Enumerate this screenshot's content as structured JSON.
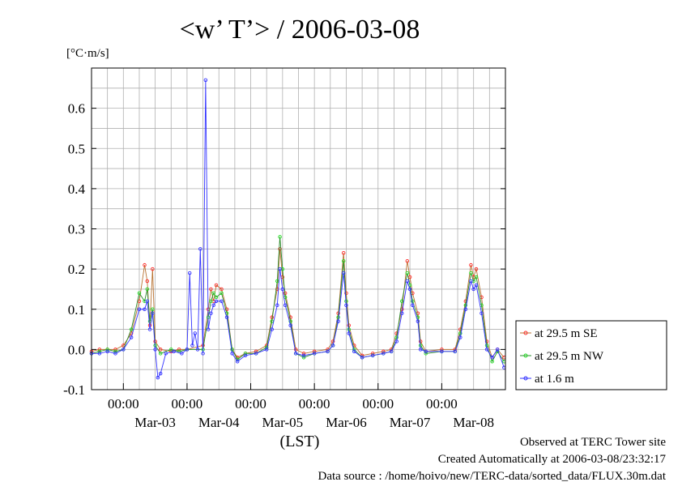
{
  "chart_data": {
    "type": "line",
    "title": "<w’ T’> / 2006-03-08",
    "ylabel": "[°C·m/s]",
    "xlabel": "(LST)",
    "x_start": "2006-03-02 12:00",
    "x_end": "2006-03-09 00:00",
    "ylim": [
      -0.1,
      0.7
    ],
    "yticks": [
      "-0.1",
      "0.0",
      "0.1",
      "0.2",
      "0.3",
      "0.4",
      "0.5",
      "0.6"
    ],
    "xticks_time": [
      {
        "label": "00:00",
        "date": "Mar-03"
      },
      {
        "label": "00:00",
        "date": "Mar-04"
      },
      {
        "label": "00:00",
        "date": "Mar-05"
      },
      {
        "label": "00:00",
        "date": "Mar-06"
      },
      {
        "label": "00:00",
        "date": "Mar-07"
      },
      {
        "label": "00:00",
        "date": "Mar-08"
      }
    ],
    "grid": true,
    "legend_position": "right",
    "series": [
      {
        "name": "at 29.5 m SE",
        "color": "#ff2a2a",
        "line_color": "#b87333",
        "points": [
          [
            "2006-03-02 12:00",
            -0.005
          ],
          [
            "2006-03-02 15:00",
            0.0
          ],
          [
            "2006-03-02 18:00",
            0.0
          ],
          [
            "2006-03-02 21:00",
            0.0
          ],
          [
            "2006-03-03 00:00",
            0.01
          ],
          [
            "2006-03-03 03:00",
            0.04
          ],
          [
            "2006-03-03 06:00",
            0.12
          ],
          [
            "2006-03-03 08:00",
            0.21
          ],
          [
            "2006-03-03 09:00",
            0.17
          ],
          [
            "2006-03-03 10:00",
            0.06
          ],
          [
            "2006-03-03 11:00",
            0.2
          ],
          [
            "2006-03-03 12:00",
            0.02
          ],
          [
            "2006-03-03 14:00",
            0.0
          ],
          [
            "2006-03-03 18:00",
            -0.005
          ],
          [
            "2006-03-03 21:00",
            0.0
          ],
          [
            "2006-03-04 00:00",
            0.0
          ],
          [
            "2006-03-04 06:00",
            0.01
          ],
          [
            "2006-03-04 08:00",
            0.1
          ],
          [
            "2006-03-04 09:00",
            0.15
          ],
          [
            "2006-03-04 10:00",
            0.12
          ],
          [
            "2006-03-04 11:00",
            0.16
          ],
          [
            "2006-03-04 13:00",
            0.15
          ],
          [
            "2006-03-04 15:00",
            0.1
          ],
          [
            "2006-03-04 17:00",
            0.0
          ],
          [
            "2006-03-04 19:00",
            -0.02
          ],
          [
            "2006-03-04 22:00",
            -0.01
          ],
          [
            "2006-03-05 02:00",
            -0.005
          ],
          [
            "2006-03-05 06:00",
            0.01
          ],
          [
            "2006-03-05 08:00",
            0.08
          ],
          [
            "2006-03-05 10:00",
            0.15
          ],
          [
            "2006-03-05 11:00",
            0.25
          ],
          [
            "2006-03-05 12:00",
            0.18
          ],
          [
            "2006-03-05 13:00",
            0.14
          ],
          [
            "2006-03-05 15:00",
            0.08
          ],
          [
            "2006-03-05 17:00",
            0.0
          ],
          [
            "2006-03-05 20:00",
            -0.01
          ],
          [
            "2006-03-06 00:00",
            -0.005
          ],
          [
            "2006-03-06 05:00",
            0.0
          ],
          [
            "2006-03-06 07:00",
            0.02
          ],
          [
            "2006-03-06 09:00",
            0.09
          ],
          [
            "2006-03-06 11:00",
            0.24
          ],
          [
            "2006-03-06 12:00",
            0.14
          ],
          [
            "2006-03-06 13:00",
            0.06
          ],
          [
            "2006-03-06 15:00",
            0.01
          ],
          [
            "2006-03-06 18:00",
            -0.015
          ],
          [
            "2006-03-06 22:00",
            -0.01
          ],
          [
            "2006-03-07 02:00",
            -0.005
          ],
          [
            "2006-03-07 05:00",
            0.0
          ],
          [
            "2006-03-07 07:00",
            0.04
          ],
          [
            "2006-03-07 09:00",
            0.1
          ],
          [
            "2006-03-07 11:00",
            0.22
          ],
          [
            "2006-03-07 12:00",
            0.18
          ],
          [
            "2006-03-07 13:00",
            0.14
          ],
          [
            "2006-03-07 15:00",
            0.09
          ],
          [
            "2006-03-07 16:00",
            0.02
          ],
          [
            "2006-03-07 18:00",
            -0.005
          ],
          [
            "2006-03-08 00:00",
            0.0
          ],
          [
            "2006-03-08 05:00",
            0.0
          ],
          [
            "2006-03-08 07:00",
            0.05
          ],
          [
            "2006-03-08 09:00",
            0.12
          ],
          [
            "2006-03-08 11:00",
            0.21
          ],
          [
            "2006-03-08 12:00",
            0.18
          ],
          [
            "2006-03-08 13:00",
            0.2
          ],
          [
            "2006-03-08 15:00",
            0.13
          ],
          [
            "2006-03-08 17:00",
            0.02
          ],
          [
            "2006-03-08 19:00",
            -0.02
          ],
          [
            "2006-03-08 21:00",
            0.0
          ],
          [
            "2006-03-08 23:30",
            -0.02
          ]
        ]
      },
      {
        "name": "at 29.5 m NW",
        "color": "#22dd22",
        "line_color": "#2a8a2a",
        "points": [
          [
            "2006-03-02 12:00",
            -0.01
          ],
          [
            "2006-03-02 15:00",
            -0.005
          ],
          [
            "2006-03-02 18:00",
            0.0
          ],
          [
            "2006-03-02 21:00",
            -0.005
          ],
          [
            "2006-03-03 00:00",
            0.0
          ],
          [
            "2006-03-03 03:00",
            0.05
          ],
          [
            "2006-03-03 06:00",
            0.14
          ],
          [
            "2006-03-03 08:00",
            0.12
          ],
          [
            "2006-03-03 09:00",
            0.15
          ],
          [
            "2006-03-03 10:00",
            0.07
          ],
          [
            "2006-03-03 11:00",
            0.1
          ],
          [
            "2006-03-03 12:00",
            0.01
          ],
          [
            "2006-03-03 14:00",
            -0.01
          ],
          [
            "2006-03-03 18:00",
            0.0
          ],
          [
            "2006-03-03 21:00",
            -0.005
          ],
          [
            "2006-03-04 00:00",
            0.0
          ],
          [
            "2006-03-04 06:00",
            0.0
          ],
          [
            "2006-03-04 08:00",
            0.08
          ],
          [
            "2006-03-04 09:00",
            0.12
          ],
          [
            "2006-03-04 10:00",
            0.14
          ],
          [
            "2006-03-04 11:00",
            0.13
          ],
          [
            "2006-03-04 13:00",
            0.14
          ],
          [
            "2006-03-04 15:00",
            0.09
          ],
          [
            "2006-03-04 17:00",
            0.0
          ],
          [
            "2006-03-04 19:00",
            -0.025
          ],
          [
            "2006-03-04 22:00",
            -0.01
          ],
          [
            "2006-03-05 02:00",
            -0.01
          ],
          [
            "2006-03-05 06:00",
            0.005
          ],
          [
            "2006-03-05 08:00",
            0.07
          ],
          [
            "2006-03-05 10:00",
            0.17
          ],
          [
            "2006-03-05 11:00",
            0.28
          ],
          [
            "2006-03-05 12:00",
            0.2
          ],
          [
            "2006-03-05 13:00",
            0.13
          ],
          [
            "2006-03-05 15:00",
            0.07
          ],
          [
            "2006-03-05 17:00",
            -0.01
          ],
          [
            "2006-03-05 20:00",
            -0.02
          ],
          [
            "2006-03-06 00:00",
            -0.01
          ],
          [
            "2006-03-06 05:00",
            -0.005
          ],
          [
            "2006-03-06 07:00",
            0.01
          ],
          [
            "2006-03-06 09:00",
            0.08
          ],
          [
            "2006-03-06 11:00",
            0.22
          ],
          [
            "2006-03-06 12:00",
            0.12
          ],
          [
            "2006-03-06 13:00",
            0.05
          ],
          [
            "2006-03-06 15:00",
            0.0
          ],
          [
            "2006-03-06 18:00",
            -0.02
          ],
          [
            "2006-03-06 22:00",
            -0.015
          ],
          [
            "2006-03-07 02:00",
            -0.01
          ],
          [
            "2006-03-07 05:00",
            -0.005
          ],
          [
            "2006-03-07 07:00",
            0.03
          ],
          [
            "2006-03-07 09:00",
            0.12
          ],
          [
            "2006-03-07 11:00",
            0.19
          ],
          [
            "2006-03-07 12:00",
            0.16
          ],
          [
            "2006-03-07 13:00",
            0.12
          ],
          [
            "2006-03-07 15:00",
            0.08
          ],
          [
            "2006-03-07 16:00",
            0.01
          ],
          [
            "2006-03-07 18:00",
            -0.01
          ],
          [
            "2006-03-08 00:00",
            -0.005
          ],
          [
            "2006-03-08 05:00",
            -0.005
          ],
          [
            "2006-03-08 07:00",
            0.04
          ],
          [
            "2006-03-08 09:00",
            0.11
          ],
          [
            "2006-03-08 11:00",
            0.19
          ],
          [
            "2006-03-08 12:00",
            0.17
          ],
          [
            "2006-03-08 13:00",
            0.18
          ],
          [
            "2006-03-08 15:00",
            0.11
          ],
          [
            "2006-03-08 17:00",
            0.01
          ],
          [
            "2006-03-08 19:00",
            -0.03
          ],
          [
            "2006-03-08 21:00",
            -0.005
          ],
          [
            "2006-03-08 23:30",
            -0.03
          ]
        ]
      },
      {
        "name": "at 1.6 m",
        "color": "#3333ff",
        "line_color": "#3333ff",
        "points": [
          [
            "2006-03-02 12:00",
            -0.01
          ],
          [
            "2006-03-02 15:00",
            -0.01
          ],
          [
            "2006-03-02 18:00",
            -0.005
          ],
          [
            "2006-03-02 21:00",
            -0.01
          ],
          [
            "2006-03-03 00:00",
            0.0
          ],
          [
            "2006-03-03 03:00",
            0.03
          ],
          [
            "2006-03-03 06:00",
            0.1
          ],
          [
            "2006-03-03 08:00",
            0.1
          ],
          [
            "2006-03-03 09:00",
            0.12
          ],
          [
            "2006-03-03 10:00",
            0.05
          ],
          [
            "2006-03-03 11:00",
            0.09
          ],
          [
            "2006-03-03 12:00",
            0.0
          ],
          [
            "2006-03-03 13:00",
            -0.07
          ],
          [
            "2006-03-03 14:00",
            -0.06
          ],
          [
            "2006-03-03 16:00",
            -0.01
          ],
          [
            "2006-03-03 19:00",
            -0.005
          ],
          [
            "2006-03-03 22:00",
            -0.01
          ],
          [
            "2006-03-04 00:00",
            0.0
          ],
          [
            "2006-03-04 01:00",
            0.19
          ],
          [
            "2006-03-04 02:00",
            0.01
          ],
          [
            "2006-03-04 03:00",
            0.04
          ],
          [
            "2006-03-04 04:00",
            0.0
          ],
          [
            "2006-03-04 05:00",
            0.25
          ],
          [
            "2006-03-04 06:00",
            -0.01
          ],
          [
            "2006-03-04 07:00",
            0.67
          ],
          [
            "2006-03-04 08:00",
            0.05
          ],
          [
            "2006-03-04 09:00",
            0.09
          ],
          [
            "2006-03-04 10:00",
            0.11
          ],
          [
            "2006-03-04 11:00",
            0.12
          ],
          [
            "2006-03-04 13:00",
            0.12
          ],
          [
            "2006-03-04 15:00",
            0.08
          ],
          [
            "2006-03-04 17:00",
            -0.01
          ],
          [
            "2006-03-04 19:00",
            -0.03
          ],
          [
            "2006-03-04 22:00",
            -0.015
          ],
          [
            "2006-03-05 02:00",
            -0.01
          ],
          [
            "2006-03-05 06:00",
            0.0
          ],
          [
            "2006-03-05 08:00",
            0.05
          ],
          [
            "2006-03-05 10:00",
            0.11
          ],
          [
            "2006-03-05 11:00",
            0.2
          ],
          [
            "2006-03-05 12:00",
            0.15
          ],
          [
            "2006-03-05 13:00",
            0.11
          ],
          [
            "2006-03-05 15:00",
            0.06
          ],
          [
            "2006-03-05 17:00",
            -0.01
          ],
          [
            "2006-03-05 20:00",
            -0.015
          ],
          [
            "2006-03-06 00:00",
            -0.01
          ],
          [
            "2006-03-06 05:00",
            -0.005
          ],
          [
            "2006-03-06 07:00",
            0.01
          ],
          [
            "2006-03-06 09:00",
            0.07
          ],
          [
            "2006-03-06 11:00",
            0.19
          ],
          [
            "2006-03-06 12:00",
            0.11
          ],
          [
            "2006-03-06 13:00",
            0.04
          ],
          [
            "2006-03-06 15:00",
            -0.005
          ],
          [
            "2006-03-06 18:00",
            -0.02
          ],
          [
            "2006-03-06 22:00",
            -0.015
          ],
          [
            "2006-03-07 02:00",
            -0.01
          ],
          [
            "2006-03-07 05:00",
            -0.005
          ],
          [
            "2006-03-07 07:00",
            0.02
          ],
          [
            "2006-03-07 09:00",
            0.09
          ],
          [
            "2006-03-07 11:00",
            0.17
          ],
          [
            "2006-03-07 12:00",
            0.15
          ],
          [
            "2006-03-07 13:00",
            0.11
          ],
          [
            "2006-03-07 15:00",
            0.07
          ],
          [
            "2006-03-07 16:00",
            0.0
          ],
          [
            "2006-03-07 18:00",
            -0.005
          ],
          [
            "2006-03-08 00:00",
            -0.005
          ],
          [
            "2006-03-08 05:00",
            -0.005
          ],
          [
            "2006-03-08 07:00",
            0.03
          ],
          [
            "2006-03-08 09:00",
            0.1
          ],
          [
            "2006-03-08 11:00",
            0.17
          ],
          [
            "2006-03-08 12:00",
            0.15
          ],
          [
            "2006-03-08 13:00",
            0.16
          ],
          [
            "2006-03-08 15:00",
            0.09
          ],
          [
            "2006-03-08 17:00",
            0.0
          ],
          [
            "2006-03-08 19:00",
            -0.02
          ],
          [
            "2006-03-08 21:00",
            0.0
          ],
          [
            "2006-03-08 23:30",
            -0.045
          ]
        ]
      }
    ]
  },
  "footer": {
    "line1": "Observed at TERC Tower site",
    "line2": "Created Automatically at 2006-03-08/23:32:17",
    "line3": "Data source : /home/hoivo/new/TERC-data/sorted_data/FLUX.30m.dat"
  }
}
